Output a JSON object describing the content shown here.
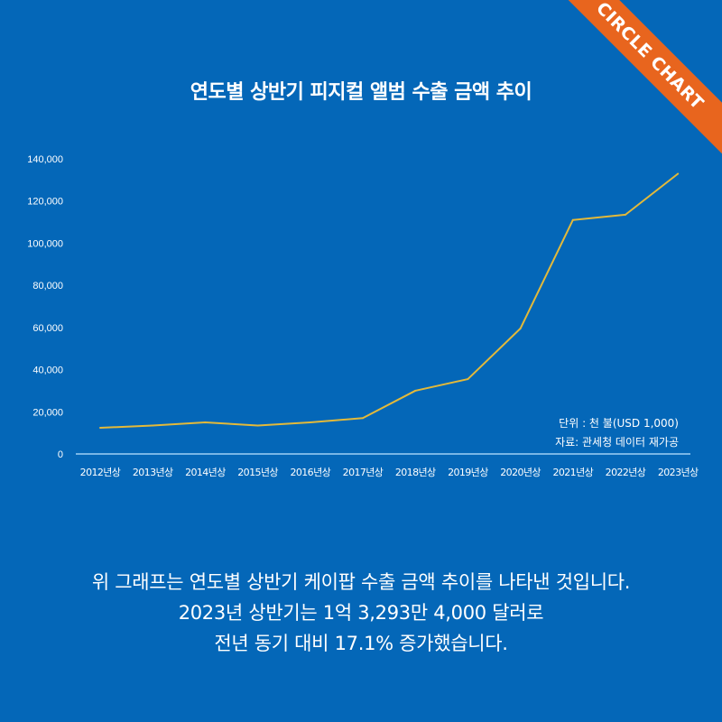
{
  "banner": "CIRCLE CHART",
  "chart_data": {
    "type": "line",
    "title": "연도별 상반기 피지컬 앨범 수출 금액 추이",
    "categories": [
      "2012년상",
      "2013년상",
      "2014년상",
      "2015년상",
      "2016년상",
      "2017년상",
      "2018년상",
      "2019년상",
      "2020년상",
      "2021년상",
      "2022년상",
      "2023년상"
    ],
    "series": [
      {
        "name": "수출 금액",
        "color": "#e3b93a",
        "values": [
          12400,
          13500,
          15000,
          13500,
          15000,
          17000,
          30000,
          35500,
          59500,
          111000,
          113500,
          132934
        ]
      }
    ],
    "yticks": [
      "0",
      "20,000",
      "40,000",
      "60,000",
      "80,000",
      "100,000",
      "120,000",
      "140,000"
    ],
    "ytick_values": [
      0,
      20000,
      40000,
      60000,
      80000,
      100000,
      120000,
      140000
    ],
    "ylim": [
      0,
      140000
    ],
    "grid": false,
    "unit_note": "단위 : 천 불(USD 1,000)",
    "source_note": "자료: 관세청 데이터 재가공"
  },
  "caption": [
    "위 그래프는 연도별 상반기 케이팝 수출 금액 추이를 나타낸 것입니다.",
    "2023년 상반기는 1억 3,293만 4,000 달러로",
    "전년 동기 대비 17.1% 증가했습니다."
  ]
}
